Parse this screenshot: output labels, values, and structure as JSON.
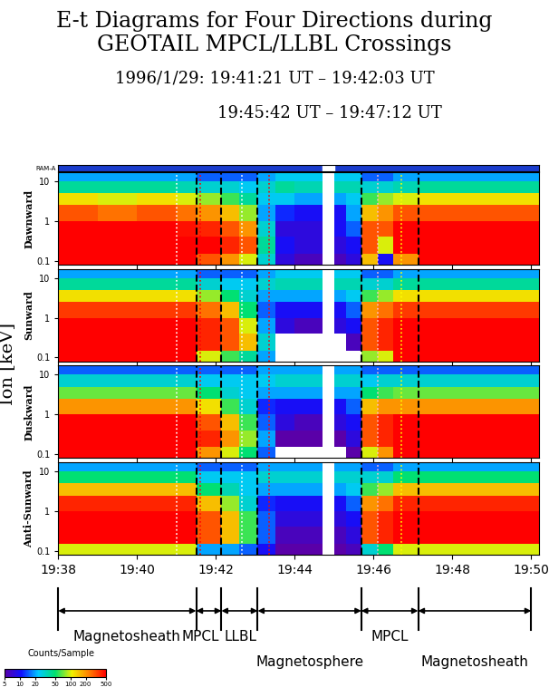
{
  "chart_data": {
    "type": "heatmap",
    "title": "E-t Diagrams for Four Directions during\nGEOTAIL MPCL/LLBL Crossings",
    "subtitle": [
      "1996/1/29: 19:41:21 UT – 19:42:03 UT",
      "19:45:42 UT – 19:47:12 UT"
    ],
    "ylabel": "Ion [keV]",
    "bar_label": "RAM-A",
    "log": "y",
    "xlim": [
      1178,
      1190.2
    ],
    "xticks": [
      {
        "value": 1178,
        "label": "19:38"
      },
      {
        "value": 1180,
        "label": "19:40"
      },
      {
        "value": 1182,
        "label": "19:42"
      },
      {
        "value": 1184,
        "label": "19:44"
      },
      {
        "value": 1186,
        "label": "19:46"
      },
      {
        "value": 1188,
        "label": "19:48"
      },
      {
        "value": 1190,
        "label": "19:50"
      }
    ],
    "ylim": [
      0.08,
      17
    ],
    "yticks": [
      0.1,
      1,
      10
    ],
    "time_edges": [
      1178,
      1179,
      1180,
      1181,
      1181.5,
      1182.14,
      1182.6,
      1183.06,
      1183.5,
      1184,
      1184.7,
      1185,
      1185.3,
      1185.69,
      1186.1,
      1186.5,
      1187.13,
      1188,
      1189,
      1190.2
    ],
    "energy_edges": [
      0.08,
      0.15,
      0.4,
      1,
      2.5,
      5,
      10,
      17
    ],
    "panels": [
      {
        "name": "Dawnward",
        "cells": [
          [
            500,
            500,
            500,
            300,
            120,
            40,
            20
          ],
          [
            500,
            500,
            500,
            250,
            100,
            40,
            20
          ],
          [
            500,
            500,
            500,
            300,
            120,
            40,
            20
          ],
          [
            500,
            500,
            450,
            250,
            100,
            35,
            20
          ],
          [
            300,
            500,
            400,
            200,
            80,
            30,
            15
          ],
          [
            200,
            400,
            300,
            150,
            60,
            30,
            15
          ],
          [
            100,
            300,
            200,
            80,
            40,
            25,
            15
          ],
          [
            30,
            40,
            30,
            20,
            25,
            30,
            20
          ],
          [
            8,
            10,
            8,
            12,
            25,
            40,
            25
          ],
          [
            6,
            8,
            8,
            10,
            20,
            35,
            25
          ],
          null,
          [
            6,
            8,
            10,
            10,
            20,
            35,
            25
          ],
          [
            8,
            10,
            15,
            20,
            25,
            35,
            25
          ],
          [
            150,
            300,
            300,
            150,
            60,
            30,
            15
          ],
          [
            10,
            100,
            300,
            200,
            80,
            30,
            15
          ],
          [
            200,
            500,
            500,
            300,
            100,
            35,
            20
          ],
          [
            500,
            500,
            500,
            300,
            120,
            40,
            20
          ],
          [
            500,
            500,
            500,
            300,
            120,
            40,
            20
          ],
          [
            500,
            500,
            500,
            300,
            120,
            40,
            20
          ]
        ]
      },
      {
        "name": "Sunward",
        "cells": [
          [
            500,
            500,
            500,
            350,
            120,
            40,
            20
          ],
          [
            500,
            500,
            500,
            350,
            120,
            40,
            20
          ],
          [
            500,
            500,
            500,
            350,
            120,
            40,
            20
          ],
          [
            500,
            500,
            500,
            350,
            120,
            40,
            20
          ],
          [
            100,
            400,
            400,
            250,
            80,
            30,
            15
          ],
          [
            60,
            300,
            300,
            150,
            50,
            25,
            15
          ],
          [
            40,
            150,
            100,
            50,
            30,
            25,
            15
          ],
          [
            20,
            30,
            20,
            15,
            20,
            30,
            20
          ],
          [
            3,
            4,
            8,
            10,
            20,
            35,
            25
          ],
          [
            3,
            4,
            6,
            10,
            20,
            35,
            25
          ],
          null,
          [
            3,
            4,
            8,
            10,
            20,
            35,
            25
          ],
          [
            4,
            6,
            10,
            15,
            25,
            35,
            25
          ],
          [
            80,
            300,
            300,
            200,
            60,
            30,
            15
          ],
          [
            100,
            400,
            400,
            250,
            80,
            30,
            15
          ],
          [
            500,
            500,
            500,
            350,
            120,
            40,
            20
          ],
          [
            500,
            500,
            500,
            350,
            120,
            40,
            20
          ],
          [
            500,
            500,
            500,
            350,
            120,
            40,
            20
          ],
          [
            500,
            500,
            500,
            350,
            120,
            40,
            20
          ]
        ]
      },
      {
        "name": "Duskward",
        "cells": [
          [
            500,
            500,
            500,
            200,
            70,
            30,
            15
          ],
          [
            500,
            500,
            500,
            200,
            70,
            30,
            15
          ],
          [
            500,
            500,
            500,
            200,
            70,
            30,
            15
          ],
          [
            500,
            500,
            500,
            200,
            70,
            30,
            15
          ],
          [
            200,
            400,
            300,
            120,
            50,
            25,
            15
          ],
          [
            100,
            200,
            150,
            60,
            30,
            25,
            15
          ],
          [
            50,
            80,
            60,
            30,
            25,
            25,
            15
          ],
          [
            15,
            20,
            15,
            12,
            20,
            25,
            20
          ],
          [
            3,
            5,
            8,
            10,
            20,
            30,
            20
          ],
          [
            3,
            5,
            6,
            10,
            20,
            30,
            20
          ],
          null,
          [
            3,
            5,
            8,
            10,
            20,
            30,
            20
          ],
          [
            5,
            8,
            10,
            15,
            20,
            30,
            20
          ],
          [
            100,
            300,
            300,
            150,
            50,
            25,
            15
          ],
          [
            200,
            400,
            400,
            200,
            60,
            30,
            15
          ],
          [
            500,
            500,
            500,
            200,
            70,
            30,
            15
          ],
          [
            500,
            500,
            500,
            200,
            70,
            30,
            15
          ],
          [
            500,
            500,
            500,
            200,
            70,
            30,
            15
          ],
          [
            500,
            500,
            500,
            200,
            70,
            30,
            15
          ]
        ]
      },
      {
        "name": "Anti-Sunward",
        "cells": [
          [
            100,
            500,
            500,
            400,
            150,
            50,
            20
          ],
          [
            100,
            500,
            500,
            400,
            150,
            50,
            20
          ],
          [
            100,
            500,
            500,
            400,
            150,
            50,
            20
          ],
          [
            100,
            500,
            500,
            400,
            150,
            50,
            20
          ],
          [
            20,
            300,
            300,
            150,
            50,
            25,
            15
          ],
          [
            20,
            150,
            150,
            80,
            35,
            25,
            15
          ],
          [
            15,
            60,
            60,
            30,
            25,
            25,
            15
          ],
          [
            10,
            15,
            15,
            12,
            20,
            30,
            20
          ],
          [
            5,
            6,
            8,
            10,
            20,
            30,
            20
          ],
          [
            5,
            6,
            8,
            10,
            20,
            30,
            20
          ],
          null,
          [
            5,
            6,
            8,
            10,
            20,
            30,
            20
          ],
          [
            6,
            8,
            10,
            15,
            25,
            30,
            20
          ],
          [
            30,
            300,
            300,
            200,
            60,
            30,
            15
          ],
          [
            50,
            400,
            400,
            250,
            80,
            30,
            15
          ],
          [
            100,
            500,
            500,
            400,
            150,
            50,
            20
          ],
          [
            100,
            500,
            500,
            400,
            150,
            50,
            20
          ],
          [
            100,
            500,
            500,
            400,
            150,
            50,
            20
          ],
          [
            100,
            500,
            500,
            400,
            150,
            50,
            20
          ]
        ]
      }
    ],
    "colorbar": {
      "label": "Counts/Sample",
      "range": [
        5,
        500
      ],
      "ticks": [
        5,
        10,
        20,
        50,
        100,
        200,
        500
      ],
      "log": true
    },
    "regions": [
      {
        "label": "Magnetosheath",
        "start": 1178,
        "end": 1181.5
      },
      {
        "label": "MPCL",
        "start": 1181.5,
        "end": 1182.14
      },
      {
        "label": "LLBL",
        "start": 1182.14,
        "end": 1183.06
      },
      {
        "label": "Magnetosphere",
        "start": 1183.06,
        "end": 1185.69
      },
      {
        "label": "MPCL",
        "start": 1185.69,
        "end": 1187.13
      },
      {
        "label": "Magnetosheath",
        "start": 1187.13,
        "end": 1190
      }
    ],
    "dotted_lines": [
      {
        "x": 1181.0,
        "color": "white"
      },
      {
        "x": 1181.6,
        "color": "red"
      },
      {
        "x": 1182.67,
        "color": "white"
      },
      {
        "x": 1183.35,
        "color": "red"
      },
      {
        "x": 1186.1,
        "color": "pink"
      },
      {
        "x": 1186.7,
        "color": "yellow"
      }
    ]
  }
}
